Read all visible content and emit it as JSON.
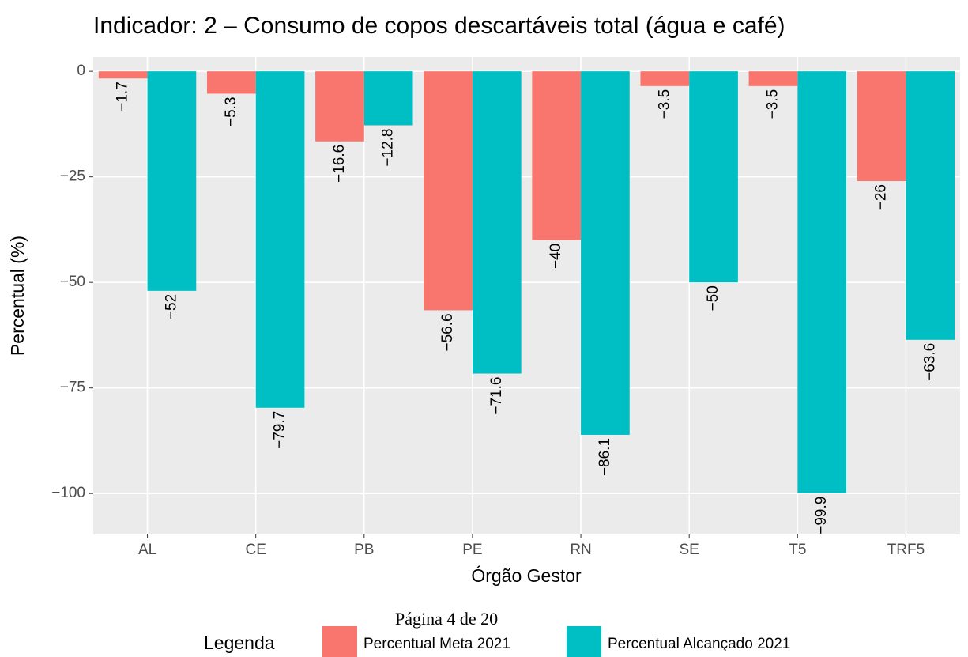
{
  "chart_data": {
    "type": "bar",
    "title": "Indicador: 2 – Consumo de copos descartáveis total (água e café)",
    "x_label": "Órgão Gestor",
    "y_label": "Percentual (%)",
    "categories": [
      "AL",
      "CE",
      "PB",
      "PE",
      "RN",
      "SE",
      "T5",
      "TRF5"
    ],
    "series": [
      {
        "name": "Percentual Meta 2021",
        "color": "#F8766D",
        "values": [
          -1.7,
          -5.3,
          -16.6,
          -56.6,
          -40,
          -3.5,
          -3.5,
          -26
        ],
        "value_labels": [
          "−1.7",
          "−5.3",
          "−16.6",
          "−56.6",
          "−40",
          "−3.5",
          "−3.5",
          "−26"
        ]
      },
      {
        "name": "Percentual Alcançado 2021",
        "color": "#00BFC4",
        "values": [
          -52,
          -79.7,
          -12.8,
          -71.6,
          -86.1,
          -50,
          -99.9,
          -63.6
        ],
        "value_labels": [
          "−52",
          "−79.7",
          "−12.8",
          "−71.6",
          "−86.1",
          "−50",
          "−99.9",
          "−63.6"
        ]
      }
    ],
    "ylim": [
      -109.7,
      3.4
    ],
    "yticks": [
      0,
      {
        "value": -25,
        "label": "−25"
      },
      {
        "value": -50,
        "label": "−50"
      },
      {
        "value": -75,
        "label": "−75"
      },
      {
        "value": -100,
        "label": "−100"
      }
    ],
    "grid": true,
    "legend_title": "Legenda",
    "legend_position": "bottom"
  },
  "page_footer": "Página 4 de 20"
}
